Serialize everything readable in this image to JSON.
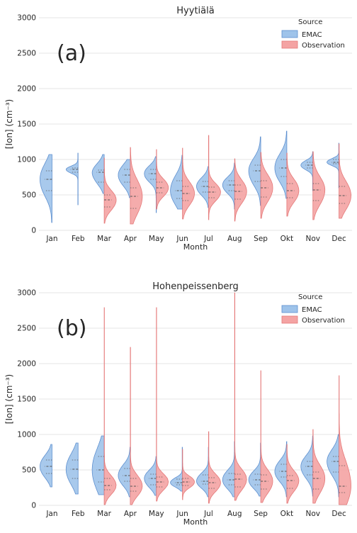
{
  "chart_data": [
    {
      "type": "violin",
      "panel_label": "(a)",
      "title": "Hyytiälä",
      "xlabel": "Month",
      "ylabel": "[Ion] (cm⁻³)",
      "ylim": [
        0,
        3000
      ],
      "yticks": [
        0,
        500,
        1000,
        1500,
        2000,
        2500,
        3000
      ],
      "grid": true,
      "legend": {
        "title": "Source",
        "placement": "top-right",
        "entries": [
          "EMAC",
          "Observation"
        ]
      },
      "categories": [
        "Jan",
        "Feb",
        "Mar",
        "Apr",
        "May",
        "Jun",
        "Jul",
        "Aug",
        "Sep",
        "Okt",
        "Nov",
        "Dec"
      ],
      "series": [
        {
          "name": "EMAC",
          "color": "#9ec3ea",
          "min": [
            110,
            360,
            520,
            460,
            250,
            300,
            320,
            300,
            350,
            450,
            560,
            600
          ],
          "q1": [
            560,
            820,
            680,
            680,
            720,
            450,
            540,
            560,
            690,
            760,
            880,
            940
          ],
          "median": [
            720,
            860,
            820,
            780,
            800,
            560,
            620,
            640,
            840,
            880,
            920,
            960
          ],
          "q3": [
            840,
            880,
            850,
            860,
            860,
            700,
            690,
            700,
            920,
            1000,
            960,
            1000
          ],
          "max": [
            1070,
            1090,
            1070,
            1000,
            1040,
            1060,
            900,
            950,
            1320,
            1400,
            1110,
            1230
          ]
        },
        {
          "name": "Observation",
          "color": "#f4a3a3",
          "min": [
            null,
            null,
            100,
            90,
            300,
            160,
            150,
            130,
            170,
            200,
            150,
            170
          ],
          "q1": [
            null,
            null,
            330,
            310,
            530,
            420,
            460,
            440,
            470,
            460,
            420,
            380
          ],
          "median": [
            null,
            null,
            430,
            480,
            600,
            520,
            540,
            550,
            600,
            560,
            570,
            490
          ],
          "q3": [
            null,
            null,
            500,
            600,
            680,
            620,
            610,
            640,
            700,
            660,
            660,
            620
          ],
          "max": [
            null,
            null,
            1020,
            1170,
            1140,
            1160,
            1340,
            1010,
            1100,
            1090,
            1110,
            1220
          ]
        }
      ]
    },
    {
      "type": "violin",
      "panel_label": "(b)",
      "title": "Hohenpeissenberg",
      "xlabel": "Month",
      "ylabel": "[Ion] (cm⁻³)",
      "ylim": [
        0,
        3000
      ],
      "yticks": [
        0,
        500,
        1000,
        1500,
        2000,
        2500,
        3000
      ],
      "grid": true,
      "legend": {
        "title": "Source",
        "placement": "top-right",
        "entries": [
          "EMAC",
          "Observation"
        ]
      },
      "categories": [
        "Jan",
        "Feb",
        "Mar",
        "Apr",
        "May",
        "Jun",
        "Jul",
        "Aug",
        "Sep",
        "Okt",
        "Nov",
        "Dec"
      ],
      "series": [
        {
          "name": "EMAC",
          "color": "#9ec3ea",
          "min": [
            260,
            160,
            150,
            120,
            140,
            200,
            120,
            120,
            130,
            120,
            130,
            120
          ],
          "q1": [
            450,
            380,
            330,
            340,
            290,
            290,
            300,
            290,
            290,
            400,
            430,
            470
          ],
          "median": [
            550,
            510,
            500,
            420,
            380,
            320,
            340,
            360,
            360,
            480,
            550,
            620
          ],
          "q3": [
            640,
            640,
            690,
            520,
            440,
            370,
            430,
            450,
            440,
            580,
            620,
            690
          ],
          "max": [
            860,
            880,
            980,
            820,
            690,
            820,
            820,
            900,
            880,
            900,
            980,
            1000
          ]
        },
        {
          "name": "Observation",
          "color": "#f4a3a3",
          "min": [
            null,
            null,
            10,
            10,
            60,
            80,
            30,
            70,
            40,
            30,
            30,
            10
          ],
          "q1": [
            null,
            null,
            220,
            200,
            260,
            280,
            240,
            260,
            230,
            240,
            230,
            180
          ],
          "median": [
            null,
            null,
            280,
            270,
            330,
            330,
            320,
            370,
            340,
            350,
            380,
            270
          ],
          "q3": [
            null,
            null,
            380,
            380,
            400,
            380,
            390,
            440,
            430,
            420,
            470,
            560
          ],
          "max": [
            null,
            null,
            2790,
            2230,
            2790,
            790,
            1040,
            3000,
            1900,
            860,
            1070,
            1830
          ]
        }
      ]
    }
  ]
}
